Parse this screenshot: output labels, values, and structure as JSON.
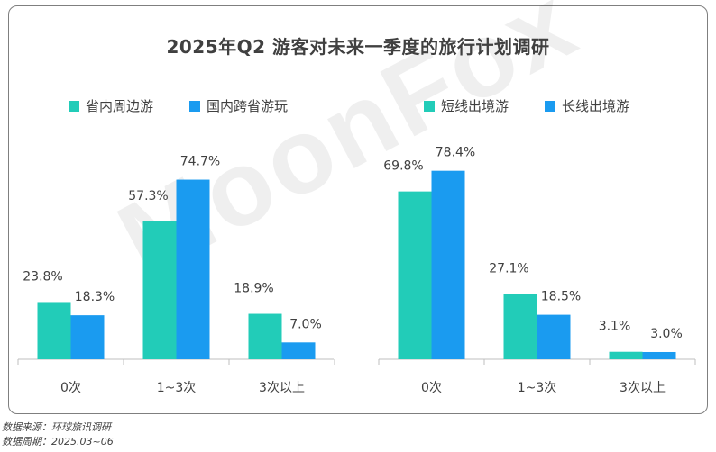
{
  "title": "2025年Q2 游客对未来一季度的旅行计划调研",
  "watermark": "MoonFox",
  "source": {
    "line1": "数据来源：环球旅讯调研",
    "line2": "数据周期：2025.03~06"
  },
  "colors": {
    "teal": "#22CCB8",
    "blue": "#1A9BF0",
    "axis": "#bfbfbf"
  },
  "chart_data": [
    {
      "type": "bar",
      "categories": [
        "0次",
        "1~3次",
        "3次以上"
      ],
      "series": [
        {
          "name": "省内周边游",
          "values": [
            23.8,
            57.3,
            18.9
          ],
          "labels": [
            "23.8%",
            "57.3%",
            "18.9%"
          ]
        },
        {
          "name": "国内跨省游玩",
          "values": [
            18.3,
            74.7,
            7.0
          ],
          "labels": [
            "18.3%",
            "74.7%",
            "7.0%"
          ]
        }
      ],
      "ylim": [
        0,
        80
      ],
      "legend": "top"
    },
    {
      "type": "bar",
      "categories": [
        "0次",
        "1~3次",
        "3次以上"
      ],
      "series": [
        {
          "name": "短线出境游",
          "values": [
            69.8,
            27.1,
            3.1
          ],
          "labels": [
            "69.8%",
            "27.1%",
            "3.1%"
          ]
        },
        {
          "name": "长线出境游",
          "values": [
            78.4,
            18.5,
            3.0
          ],
          "labels": [
            "78.4%",
            "18.5%",
            "3.0%"
          ]
        }
      ],
      "ylim": [
        0,
        80
      ],
      "legend": "top"
    }
  ]
}
